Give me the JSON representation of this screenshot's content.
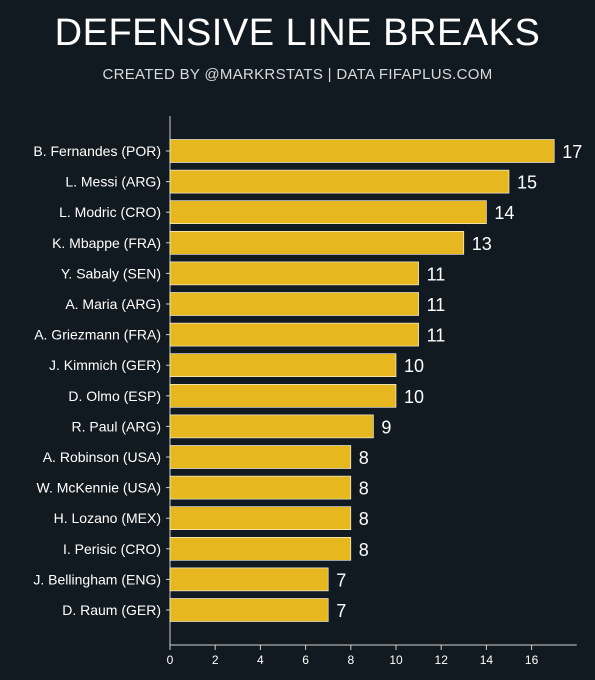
{
  "header": {
    "title": "DEFENSIVE LINE BREAKS",
    "subtitle": "CREATED BY @MARKRSTATS | DATA FIFAPLUS.COM"
  },
  "colors": {
    "background": "#121a21",
    "bar": "#e6b71e",
    "axis": "#d0d0d0",
    "text": "#ffffff"
  },
  "chart_data": {
    "type": "bar",
    "orientation": "horizontal",
    "title": "DEFENSIVE LINE BREAKS",
    "subtitle": "CREATED BY @MARKRSTATS | DATA FIFAPLUS.COM",
    "categories": [
      "B. Fernandes (POR)",
      "L. Messi (ARG)",
      "L. Modric (CRO)",
      "K. Mbappe (FRA)",
      "Y. Sabaly (SEN)",
      "A. Maria (ARG)",
      "A. Griezmann (FRA)",
      "J. Kimmich (GER)",
      "D. Olmo (ESP)",
      "R. Paul (ARG)",
      "A. Robinson (USA)",
      "W. McKennie (USA)",
      "H. Lozano (MEX)",
      "I. Perisic (CRO)",
      "J. Bellingham (ENG)",
      "D. Raum (GER)"
    ],
    "values": [
      17,
      15,
      14,
      13,
      11,
      11,
      11,
      10,
      10,
      9,
      8,
      8,
      8,
      8,
      7,
      7
    ],
    "xlim": [
      0,
      18
    ],
    "xticks": [
      0,
      2,
      4,
      6,
      8,
      10,
      12,
      14,
      16
    ],
    "xlabel": "",
    "ylabel": "",
    "grid": false,
    "data_labels": true
  }
}
